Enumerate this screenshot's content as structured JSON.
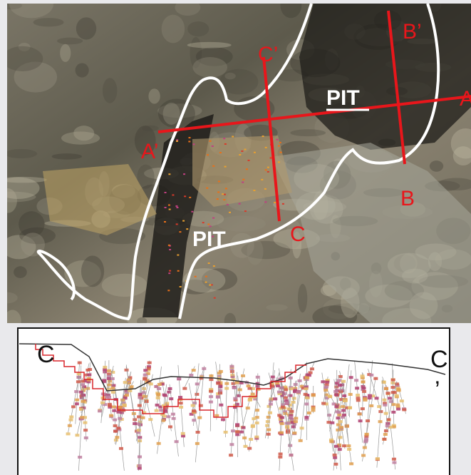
{
  "map": {
    "labels": {
      "pit_upper": "PIT",
      "pit_lower": "PIT",
      "a": "A",
      "a_prime": "A’",
      "b": "B",
      "b_prime": "B’",
      "c": "C",
      "c_prime": "C’"
    }
  },
  "section": {
    "left_label": "C",
    "right_label": "C",
    "right_prime": "’"
  }
}
